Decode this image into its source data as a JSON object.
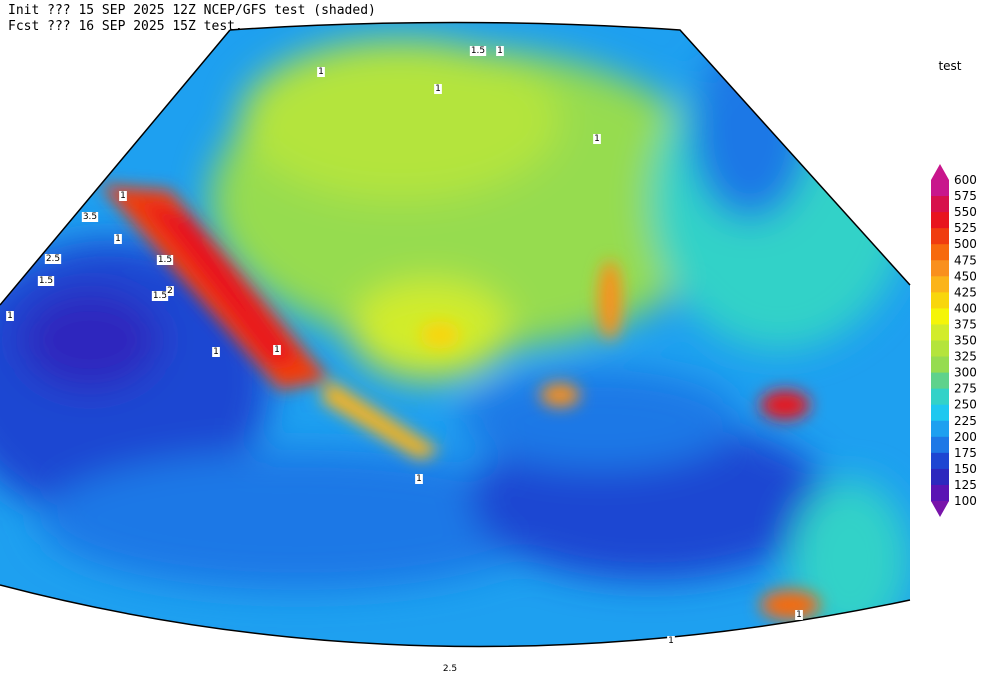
{
  "header": {
    "line1": "Init  ??? 15 SEP 2025 12Z  NCEP/GFS test (shaded)",
    "line2": "Fcst ??? 16 SEP 2025 15Z  test."
  },
  "colorbar": {
    "title": "test",
    "labels": [
      "600",
      "575",
      "550",
      "525",
      "500",
      "475",
      "450",
      "425",
      "400",
      "375",
      "350",
      "325",
      "300",
      "275",
      "250",
      "225",
      "200",
      "175",
      "150",
      "125",
      "100"
    ],
    "colors": [
      "#c8168c",
      "#d7104b",
      "#e8141e",
      "#f03c0f",
      "#f76a0d",
      "#f9901e",
      "#fbb41a",
      "#f8d60c",
      "#f5f508",
      "#d2ec2b",
      "#b4e43c",
      "#96dc50",
      "#5fd28c",
      "#32d2c8",
      "#1ec8f0",
      "#1ea0f0",
      "#1e78e6",
      "#1e46d2",
      "#2d28be",
      "#5a14b4"
    ],
    "over_color": "#c8168c",
    "under_color": "#7814aa"
  },
  "contour_labels": [
    "1",
    "3.5",
    "1",
    "2.5",
    "1.5",
    "1.5",
    "1.5",
    "2",
    "1",
    "1",
    "1",
    "1",
    "1.5",
    "1",
    "1",
    "1",
    "1",
    "1",
    "1",
    "2.5"
  ]
}
